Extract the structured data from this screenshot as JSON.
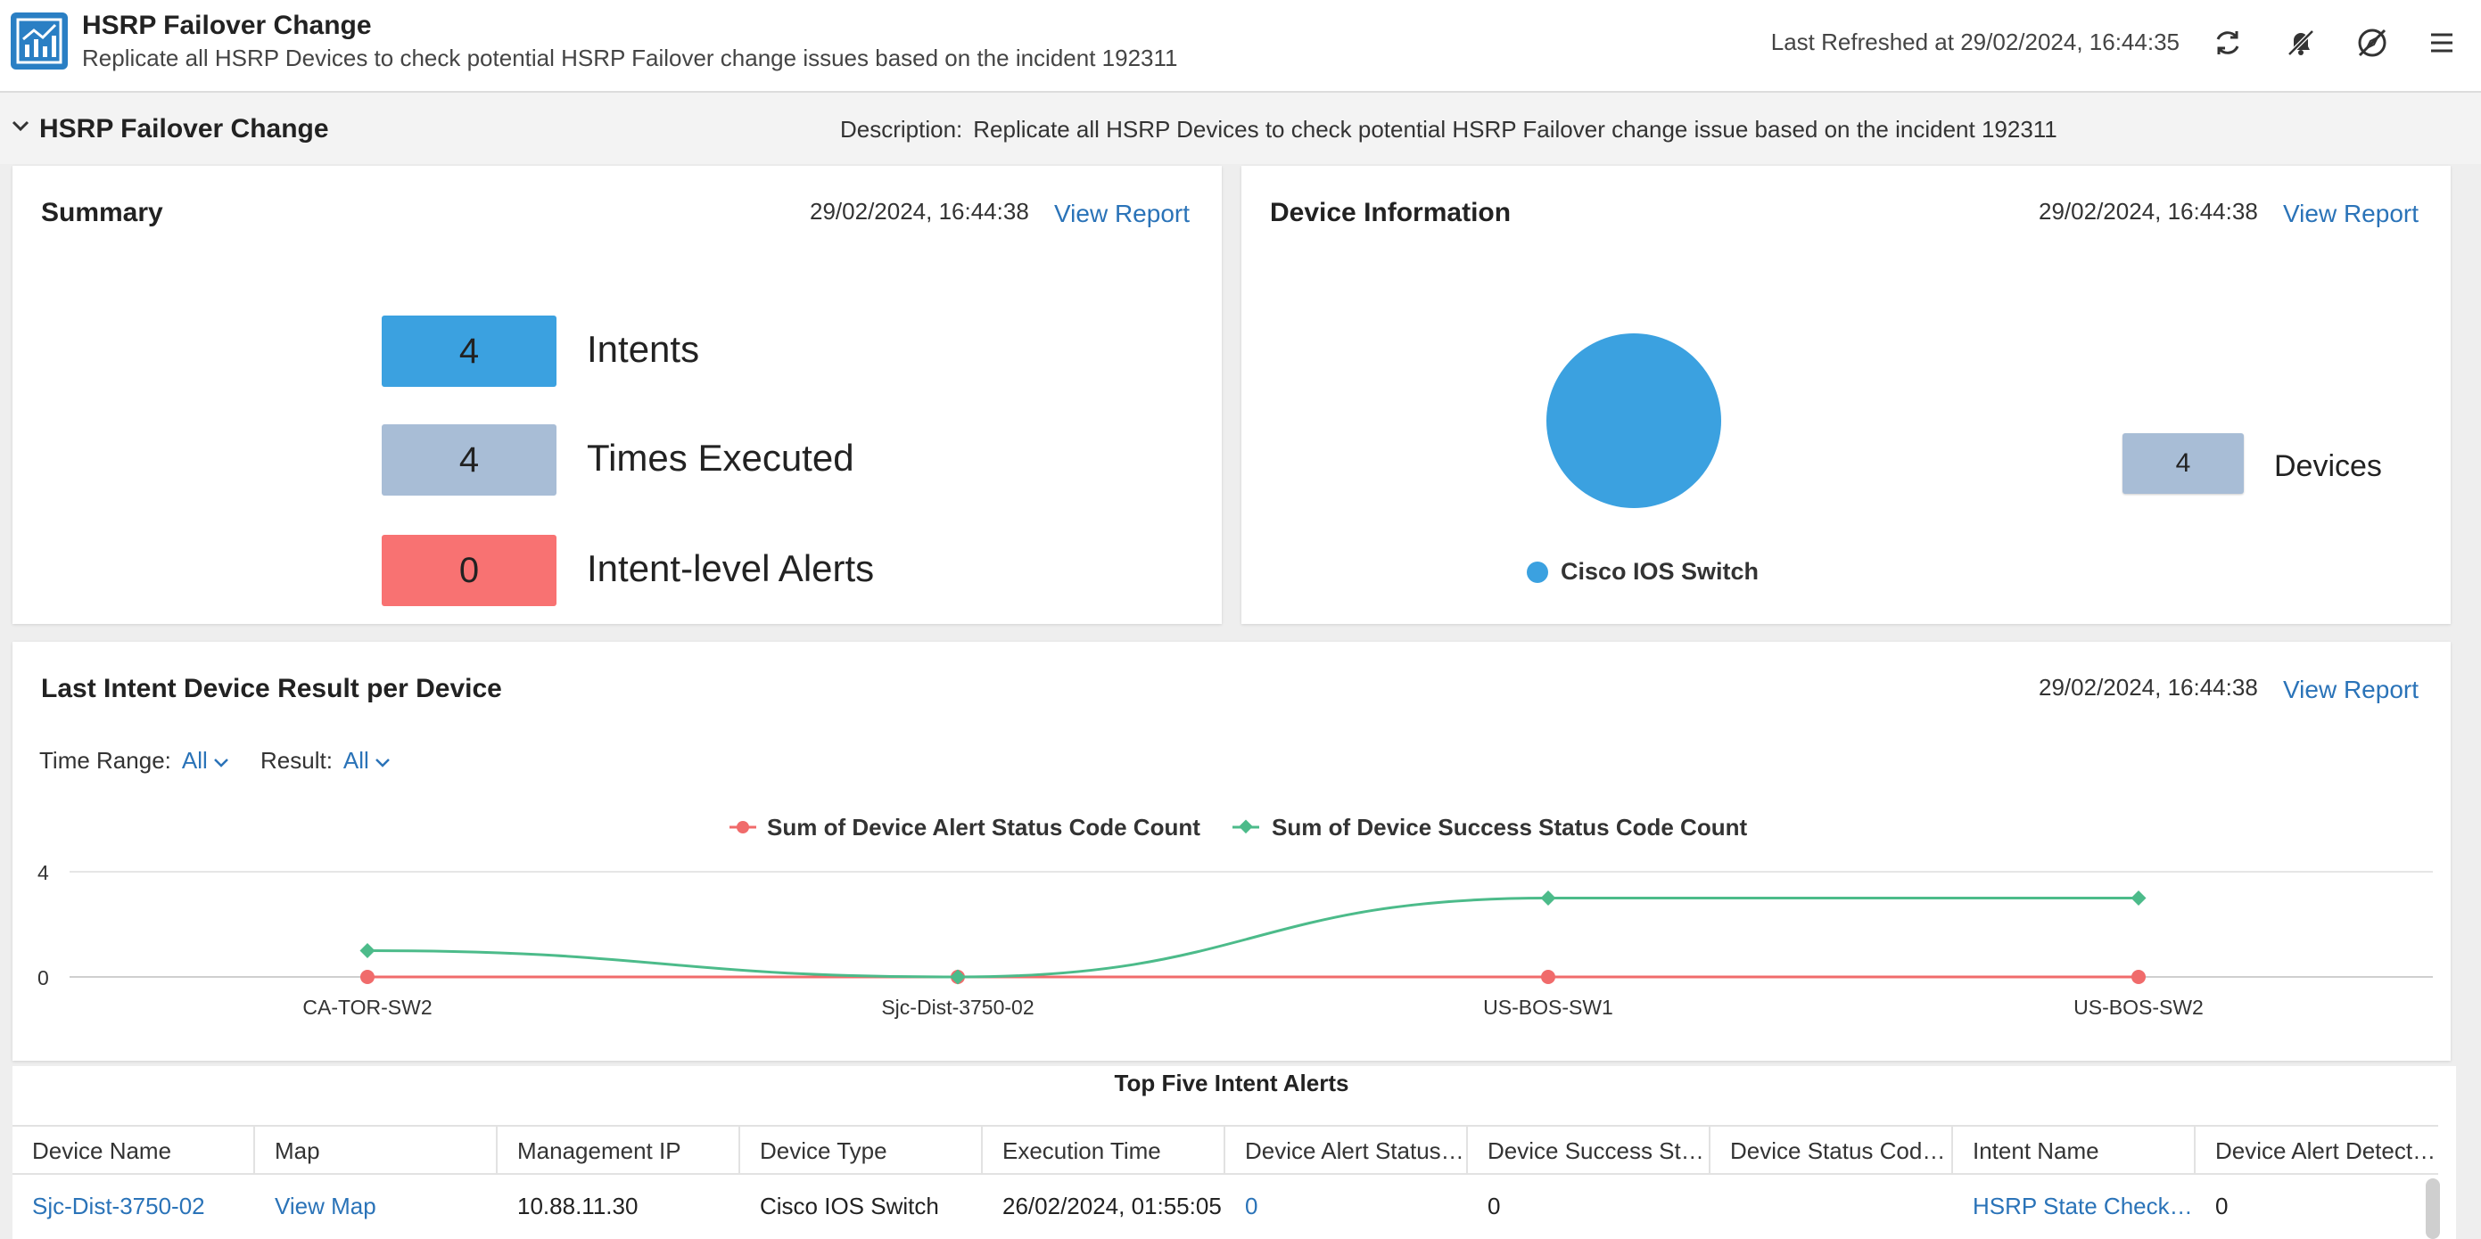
{
  "header": {
    "title": "HSRP Failover Change",
    "subtitle": "Replicate all HSRP Devices to check potential HSRP Failover change issues based on the incident 192311",
    "refresh_prefix": "Last Refreshed at",
    "refresh_time": "29/02/2024, 16:44:35",
    "icons": [
      "chart-logo-icon",
      "refresh-icon",
      "bell-off-icon",
      "compass-off-icon",
      "menu-icon"
    ]
  },
  "section": {
    "title": "HSRP Failover Change",
    "description_label": "Description:",
    "description": "Replicate all HSRP Devices to check potential HSRP Failover change issue based on the incident 192311"
  },
  "summary": {
    "title": "Summary",
    "time": "29/02/2024, 16:44:38",
    "view_report": "View Report",
    "stats": [
      {
        "value": "4",
        "label": "Intents",
        "color": "#3ba1e0"
      },
      {
        "value": "4",
        "label": "Times Executed",
        "color": "#a8bdd6"
      },
      {
        "value": "0",
        "label": "Intent-level Alerts",
        "color": "#f87272"
      }
    ]
  },
  "device_info": {
    "title": "Device Information",
    "time": "29/02/2024, 16:44:38",
    "view_report": "View Report",
    "legend": "Cisco IOS Switch",
    "pie_color": "#3ba1e0",
    "count": "4",
    "count_label": "Devices"
  },
  "last_intent": {
    "title": "Last Intent Device Result per Device",
    "time": "29/02/2024, 16:44:38",
    "view_report": "View Report",
    "time_range_label": "Time Range:",
    "time_range_value": "All",
    "result_label": "Result:",
    "result_value": "All"
  },
  "chart_data": {
    "type": "line",
    "categories": [
      "CA-TOR-SW2",
      "Sjc-Dist-3750-02",
      "US-BOS-SW1",
      "US-BOS-SW2"
    ],
    "series": [
      {
        "name": "Sum of Device Alert Status Code Count",
        "values": [
          0,
          0,
          0,
          0
        ],
        "color": "#f06b6b"
      },
      {
        "name": "Sum of Device Success Status Code Count",
        "values": [
          1,
          0,
          3,
          3
        ],
        "color": "#4cbb8a"
      }
    ],
    "yticks": [
      "4",
      "0"
    ],
    "ylim": [
      0,
      4
    ],
    "legend_position": "top-center",
    "grid": true
  },
  "table": {
    "title": "Top Five Intent Alerts",
    "columns": [
      "Device Name",
      "Map",
      "Management IP",
      "Device Type",
      "Execution Time",
      "Device Alert Status C...",
      "Device Success Stat...",
      "Device Status Code ...",
      "Intent Name",
      "Device Alert Detection"
    ],
    "rows": [
      [
        "Sjc-Dist-3750-02",
        "View Map",
        "10.88.11.30",
        "Cisco IOS Switch",
        "26/02/2024, 01:55:05",
        "0",
        "0",
        "",
        "HSRP State Check_Sj...",
        "0"
      ]
    ]
  }
}
